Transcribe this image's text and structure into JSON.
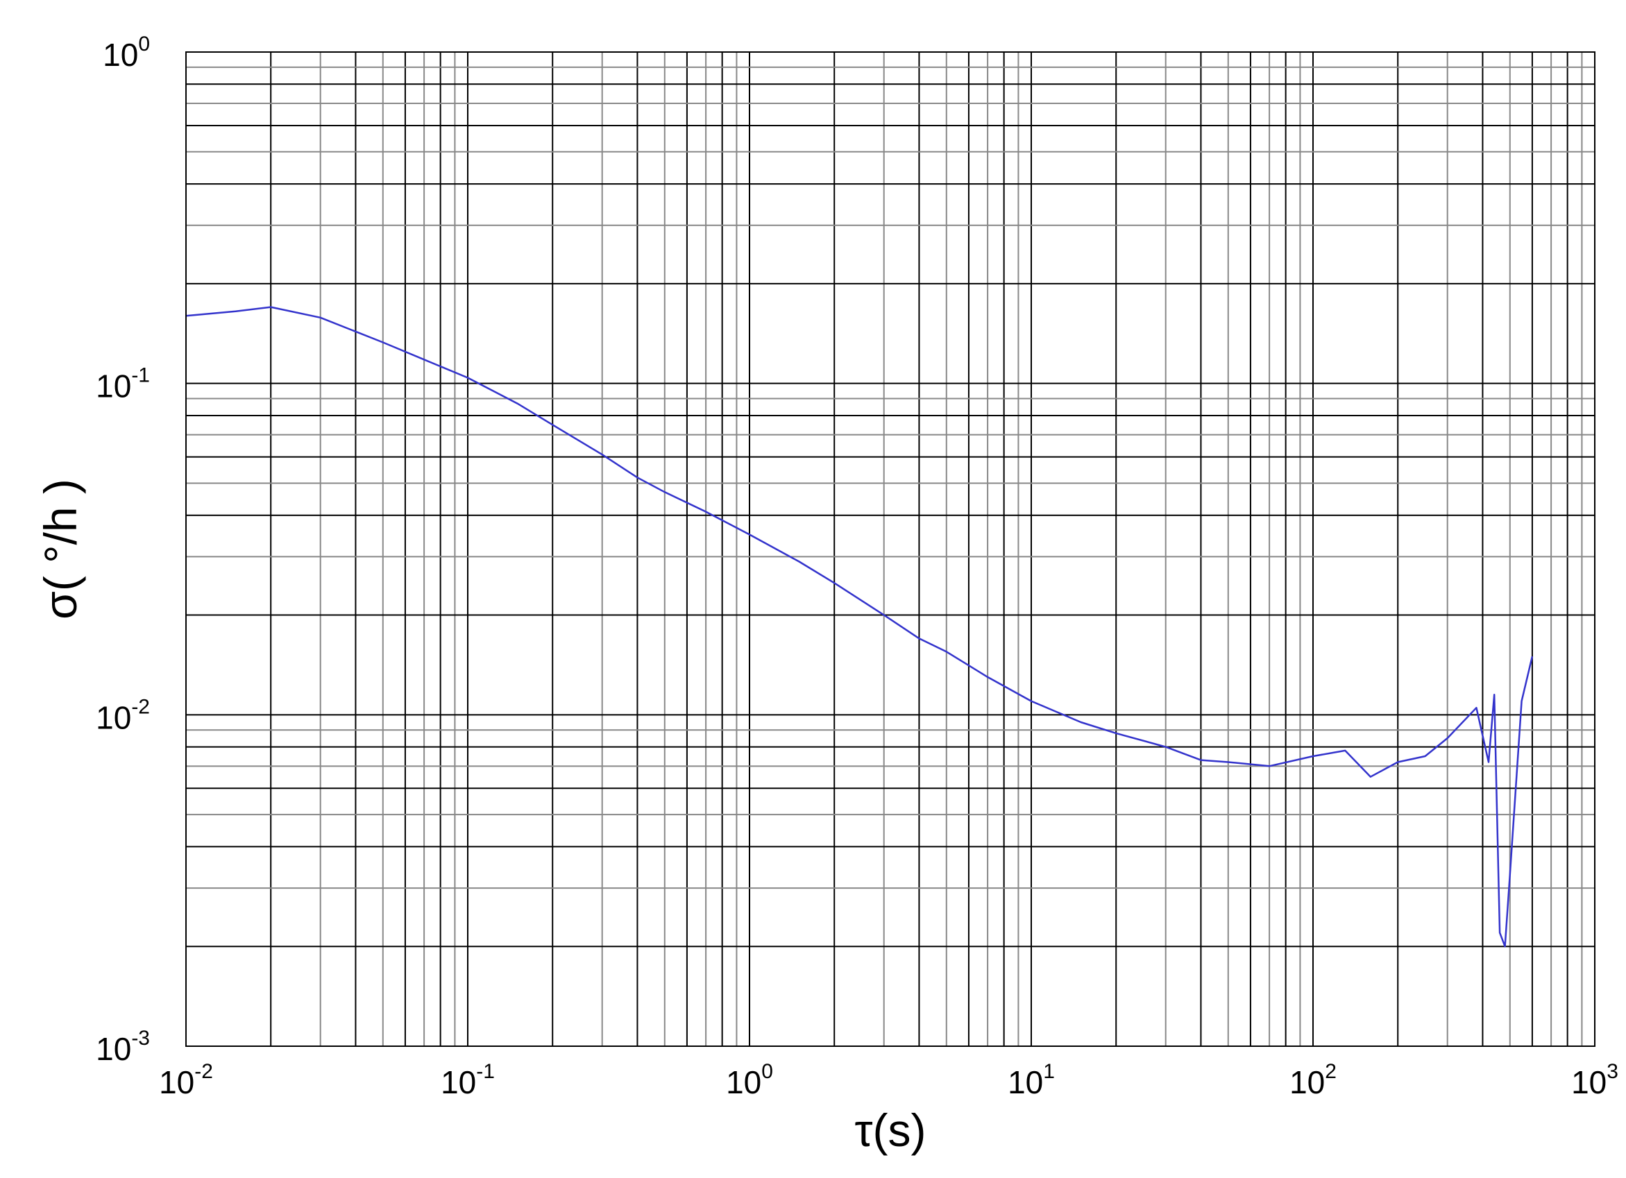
{
  "chart_data": {
    "type": "line",
    "xlabel": "τ(s)",
    "ylabel": "σ( °/h )",
    "x_scale": "log",
    "y_scale": "log",
    "xlim": [
      0.01,
      1000
    ],
    "ylim": [
      0.001,
      1
    ],
    "grid": true,
    "x_ticks": [
      {
        "base": "10",
        "exp": "-2"
      },
      {
        "base": "10",
        "exp": "-1"
      },
      {
        "base": "10",
        "exp": "0"
      },
      {
        "base": "10",
        "exp": "1"
      },
      {
        "base": "10",
        "exp": "2"
      },
      {
        "base": "10",
        "exp": "3"
      }
    ],
    "y_ticks": [
      {
        "base": "10",
        "exp": "-3"
      },
      {
        "base": "10",
        "exp": "-2"
      },
      {
        "base": "10",
        "exp": "-1"
      },
      {
        "base": "10",
        "exp": "0"
      }
    ],
    "series": [
      {
        "color": "#3333cc",
        "x": [
          0.01,
          0.015,
          0.02,
          0.03,
          0.05,
          0.07,
          0.1,
          0.15,
          0.2,
          0.3,
          0.4,
          0.5,
          0.7,
          1.0,
          1.5,
          2.0,
          3.0,
          4.0,
          5.0,
          7.0,
          10,
          15,
          20,
          30,
          40,
          50,
          70,
          100,
          130,
          160,
          200,
          250,
          300,
          380,
          420,
          440,
          460,
          480,
          500,
          550,
          600
        ],
        "y": [
          0.16,
          0.165,
          0.17,
          0.158,
          0.133,
          0.118,
          0.104,
          0.087,
          0.075,
          0.061,
          0.052,
          0.047,
          0.041,
          0.035,
          0.029,
          0.025,
          0.02,
          0.017,
          0.0155,
          0.013,
          0.011,
          0.0095,
          0.0088,
          0.008,
          0.0073,
          0.0072,
          0.007,
          0.0075,
          0.0078,
          0.0065,
          0.0072,
          0.0075,
          0.0085,
          0.0105,
          0.0072,
          0.0115,
          0.0022,
          0.002,
          0.0033,
          0.011,
          0.015
        ]
      }
    ]
  }
}
